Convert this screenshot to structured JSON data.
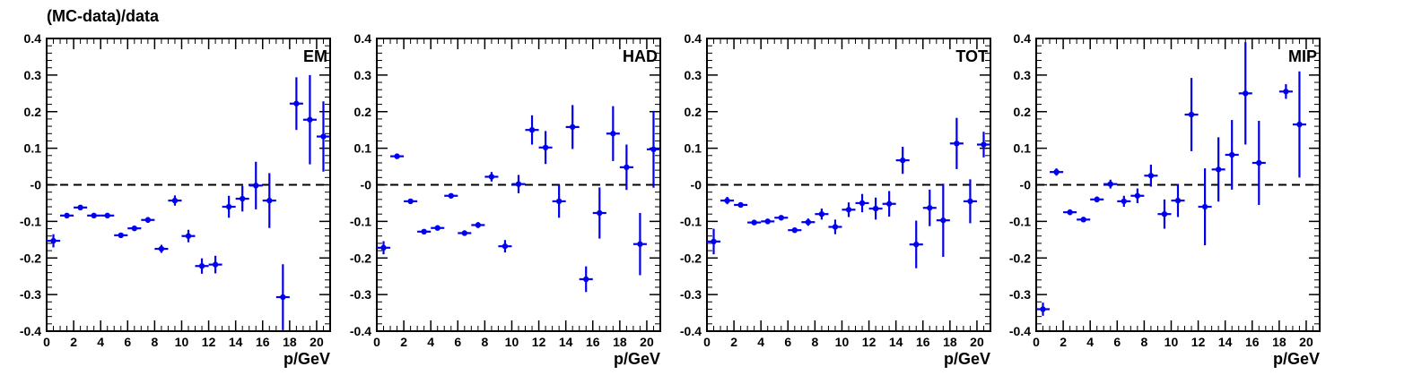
{
  "figure": {
    "ylabel": "(MC-data)/data"
  },
  "colors": {
    "marker": "#0000ee",
    "axis": "#000000",
    "reference": "#000000"
  },
  "chart_data": [
    {
      "type": "scatter",
      "panel_label": "EM",
      "xlabel": "p/GeV",
      "ylabel": "(MC-data)/data",
      "xlim": [
        0,
        21
      ],
      "ylim": [
        -0.4,
        0.4
      ],
      "reference_line": 0,
      "xticks": [
        "0",
        "2",
        "4",
        "6",
        "8",
        "10",
        "12",
        "14",
        "16",
        "18",
        "20"
      ],
      "yticks": [
        "-0.4",
        "-0.3",
        "-0.2",
        "-0.1",
        "-0",
        "0.1",
        "0.2",
        "0.3",
        "0.4"
      ],
      "series": [
        {
          "points": [
            {
              "x": 0.5,
              "y": -0.153,
              "yerr": 0.018
            },
            {
              "x": 1.5,
              "y": -0.084,
              "yerr": 0.006
            },
            {
              "x": 2.5,
              "y": -0.062,
              "yerr": 0.006
            },
            {
              "x": 3.5,
              "y": -0.084,
              "yerr": 0.005
            },
            {
              "x": 4.5,
              "y": -0.084,
              "yerr": 0.005
            },
            {
              "x": 5.5,
              "y": -0.138,
              "yerr": 0.006
            },
            {
              "x": 6.5,
              "y": -0.119,
              "yerr": 0.007
            },
            {
              "x": 7.5,
              "y": -0.096,
              "yerr": 0.008
            },
            {
              "x": 8.5,
              "y": -0.175,
              "yerr": 0.011
            },
            {
              "x": 9.5,
              "y": -0.043,
              "yerr": 0.014
            },
            {
              "x": 10.5,
              "y": -0.14,
              "yerr": 0.017
            },
            {
              "x": 11.5,
              "y": -0.222,
              "yerr": 0.021
            },
            {
              "x": 12.5,
              "y": -0.218,
              "yerr": 0.024
            },
            {
              "x": 13.5,
              "y": -0.06,
              "yerr": 0.03
            },
            {
              "x": 14.5,
              "y": -0.038,
              "yerr": 0.035
            },
            {
              "x": 15.5,
              "y": -0.002,
              "yerr": 0.065
            },
            {
              "x": 16.5,
              "y": -0.043,
              "yerr": 0.075
            },
            {
              "x": 17.5,
              "y": -0.307,
              "yerr": 0.09
            },
            {
              "x": 18.5,
              "y": 0.222,
              "yerr": 0.072
            },
            {
              "x": 19.5,
              "y": 0.178,
              "yerr": 0.122
            },
            {
              "x": 20.5,
              "y": 0.132,
              "yerr": 0.096
            }
          ]
        }
      ]
    },
    {
      "type": "scatter",
      "panel_label": "HAD",
      "xlabel": "p/GeV",
      "ylabel": "(MC-data)/data",
      "xlim": [
        0,
        21
      ],
      "ylim": [
        -0.4,
        0.4
      ],
      "reference_line": 0,
      "xticks": [
        "0",
        "2",
        "4",
        "6",
        "8",
        "10",
        "12",
        "14",
        "16",
        "18",
        "20"
      ],
      "yticks": [
        "-0.4",
        "-0.3",
        "-0.2",
        "-0.1",
        "-0",
        "0.1",
        "0.2",
        "0.3",
        "0.4"
      ],
      "series": [
        {
          "points": [
            {
              "x": 0.5,
              "y": -0.172,
              "yerr": 0.018
            },
            {
              "x": 1.5,
              "y": 0.078,
              "yerr": 0.006
            },
            {
              "x": 2.5,
              "y": -0.045,
              "yerr": 0.004
            },
            {
              "x": 3.5,
              "y": -0.128,
              "yerr": 0.004
            },
            {
              "x": 4.5,
              "y": -0.118,
              "yerr": 0.004
            },
            {
              "x": 5.5,
              "y": -0.03,
              "yerr": 0.004
            },
            {
              "x": 6.5,
              "y": -0.132,
              "yerr": 0.005
            },
            {
              "x": 7.5,
              "y": -0.11,
              "yerr": 0.008
            },
            {
              "x": 8.5,
              "y": 0.022,
              "yerr": 0.013
            },
            {
              "x": 9.5,
              "y": -0.168,
              "yerr": 0.017
            },
            {
              "x": 10.5,
              "y": 0.002,
              "yerr": 0.025
            },
            {
              "x": 11.5,
              "y": 0.15,
              "yerr": 0.04
            },
            {
              "x": 12.5,
              "y": 0.102,
              "yerr": 0.045
            },
            {
              "x": 13.5,
              "y": -0.045,
              "yerr": 0.045
            },
            {
              "x": 14.5,
              "y": 0.158,
              "yerr": 0.06
            },
            {
              "x": 15.5,
              "y": -0.258,
              "yerr": 0.035
            },
            {
              "x": 16.5,
              "y": -0.077,
              "yerr": 0.07
            },
            {
              "x": 17.5,
              "y": 0.14,
              "yerr": 0.075
            },
            {
              "x": 18.5,
              "y": 0.048,
              "yerr": 0.062
            },
            {
              "x": 19.5,
              "y": -0.162,
              "yerr": 0.085
            },
            {
              "x": 20.5,
              "y": 0.097,
              "yerr": 0.105
            }
          ]
        }
      ]
    },
    {
      "type": "scatter",
      "panel_label": "TOT",
      "xlabel": "p/GeV",
      "ylabel": "(MC-data)/data",
      "xlim": [
        0,
        21
      ],
      "ylim": [
        -0.4,
        0.4
      ],
      "reference_line": 0,
      "xticks": [
        "0",
        "2",
        "4",
        "6",
        "8",
        "10",
        "12",
        "14",
        "16",
        "18",
        "20"
      ],
      "yticks": [
        "-0.4",
        "-0.3",
        "-0.2",
        "-0.1",
        "-0",
        "0.1",
        "0.2",
        "0.3",
        "0.4"
      ],
      "series": [
        {
          "points": [
            {
              "x": 0.5,
              "y": -0.155,
              "yerr": 0.035
            },
            {
              "x": 1.5,
              "y": -0.043,
              "yerr": 0.01
            },
            {
              "x": 2.5,
              "y": -0.055,
              "yerr": 0.005
            },
            {
              "x": 3.5,
              "y": -0.103,
              "yerr": 0.004
            },
            {
              "x": 4.5,
              "y": -0.1,
              "yerr": 0.004
            },
            {
              "x": 5.5,
              "y": -0.09,
              "yerr": 0.004
            },
            {
              "x": 6.5,
              "y": -0.124,
              "yerr": 0.006
            },
            {
              "x": 7.5,
              "y": -0.102,
              "yerr": 0.01
            },
            {
              "x": 8.5,
              "y": -0.08,
              "yerr": 0.015
            },
            {
              "x": 9.5,
              "y": -0.115,
              "yerr": 0.02
            },
            {
              "x": 10.5,
              "y": -0.068,
              "yerr": 0.02
            },
            {
              "x": 11.5,
              "y": -0.05,
              "yerr": 0.025
            },
            {
              "x": 12.5,
              "y": -0.065,
              "yerr": 0.03
            },
            {
              "x": 13.5,
              "y": -0.052,
              "yerr": 0.035
            },
            {
              "x": 14.5,
              "y": 0.067,
              "yerr": 0.037
            },
            {
              "x": 15.5,
              "y": -0.163,
              "yerr": 0.065
            },
            {
              "x": 16.5,
              "y": -0.063,
              "yerr": 0.05
            },
            {
              "x": 17.5,
              "y": -0.097,
              "yerr": 0.1
            },
            {
              "x": 18.5,
              "y": 0.113,
              "yerr": 0.07
            },
            {
              "x": 19.5,
              "y": -0.045,
              "yerr": 0.06
            },
            {
              "x": 20.5,
              "y": 0.11,
              "yerr": 0.035
            }
          ]
        }
      ]
    },
    {
      "type": "scatter",
      "panel_label": "MIP",
      "xlabel": "p/GeV",
      "ylabel": "(MC-data)/data",
      "xlim": [
        0,
        21
      ],
      "ylim": [
        -0.4,
        0.4
      ],
      "reference_line": 0,
      "xticks": [
        "0",
        "2",
        "4",
        "6",
        "8",
        "10",
        "12",
        "14",
        "16",
        "18",
        "20"
      ],
      "yticks": [
        "-0.4",
        "-0.3",
        "-0.2",
        "-0.1",
        "-0",
        "0.1",
        "0.2",
        "0.3",
        "0.4"
      ],
      "series": [
        {
          "points": [
            {
              "x": 0.5,
              "y": -0.34,
              "yerr": 0.018
            },
            {
              "x": 1.5,
              "y": 0.035,
              "yerr": 0.01
            },
            {
              "x": 2.5,
              "y": -0.075,
              "yerr": 0.008
            },
            {
              "x": 3.5,
              "y": -0.095,
              "yerr": 0.006
            },
            {
              "x": 4.5,
              "y": -0.04,
              "yerr": 0.008
            },
            {
              "x": 5.5,
              "y": 0.002,
              "yerr": 0.012
            },
            {
              "x": 6.5,
              "y": -0.045,
              "yerr": 0.015
            },
            {
              "x": 7.5,
              "y": -0.03,
              "yerr": 0.02
            },
            {
              "x": 8.5,
              "y": 0.025,
              "yerr": 0.03
            },
            {
              "x": 9.5,
              "y": -0.08,
              "yerr": 0.04
            },
            {
              "x": 10.5,
              "y": -0.043,
              "yerr": 0.045
            },
            {
              "x": 11.5,
              "y": 0.192,
              "yerr": 0.1
            },
            {
              "x": 12.5,
              "y": -0.06,
              "yerr": 0.105
            },
            {
              "x": 13.5,
              "y": 0.042,
              "yerr": 0.088
            },
            {
              "x": 14.5,
              "y": 0.082,
              "yerr": 0.095
            },
            {
              "x": 15.5,
              "y": 0.25,
              "yerr": 0.14
            },
            {
              "x": 16.5,
              "y": 0.06,
              "yerr": 0.115
            },
            {
              "x": 18.5,
              "y": 0.255,
              "yerr": 0.02
            },
            {
              "x": 19.5,
              "y": 0.165,
              "yerr": 0.145
            }
          ]
        }
      ]
    }
  ]
}
